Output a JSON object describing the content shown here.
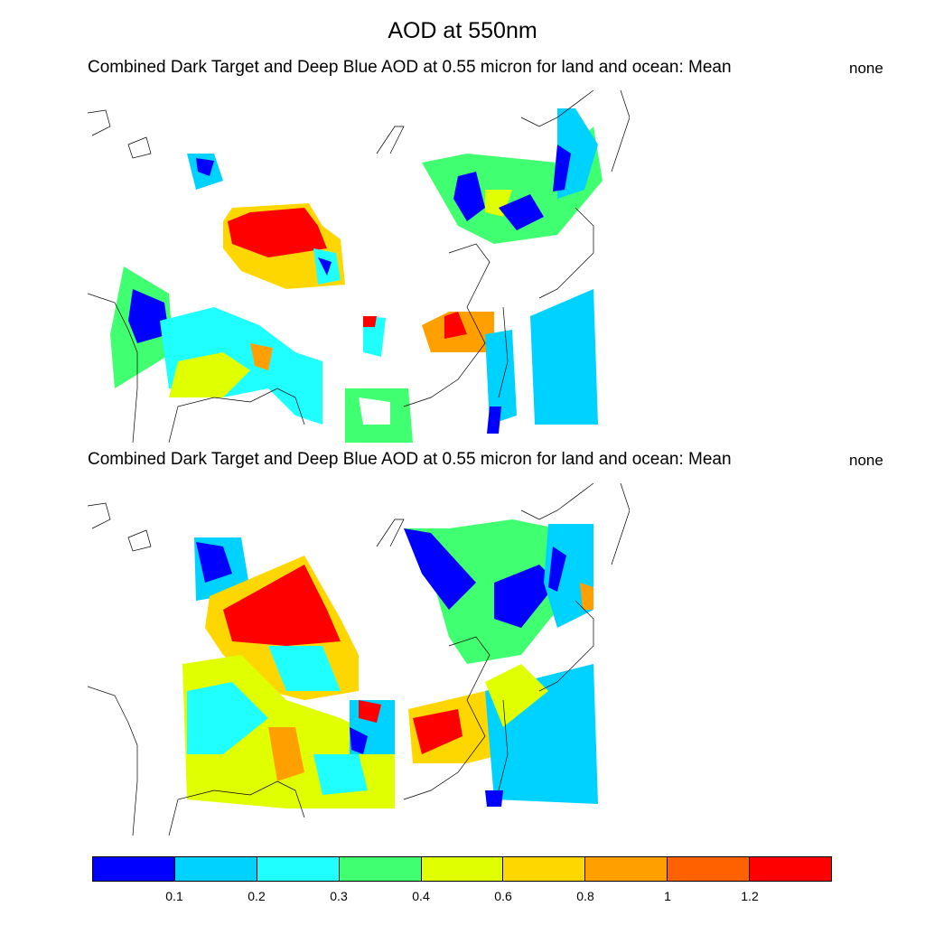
{
  "title": "AOD at 550nm",
  "panels": [
    {
      "subtitle": "Combined Dark Target and Deep Blue AOD at 0.55 micron for land and ocean: Mean",
      "label_right": "none"
    },
    {
      "subtitle": "Combined Dark Target and Deep Blue AOD at 0.55 micron for land and ocean: Mean",
      "label_right": "none"
    }
  ],
  "colorbar": {
    "colors": [
      "#0000ff",
      "#00d2ff",
      "#20ffff",
      "#40ff70",
      "#e0ff00",
      "#ffd700",
      "#ffa000",
      "#ff6000",
      "#ff0000"
    ],
    "ticks": [
      "0.1",
      "0.2",
      "0.3",
      "0.4",
      "0.6",
      "0.8",
      "1",
      "1.2"
    ]
  }
}
